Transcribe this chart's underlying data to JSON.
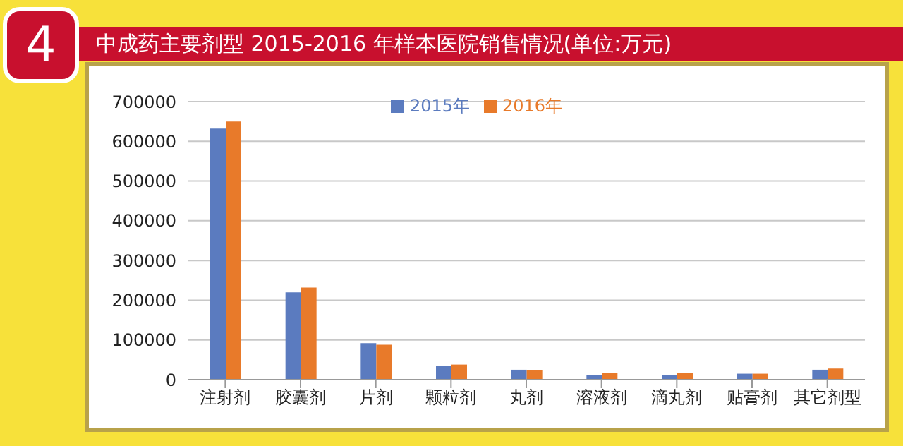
{
  "chart_data": {
    "type": "bar",
    "title": "中成药主要剂型 2015-2016 年样本医院销售情况(单位:万元)",
    "annotations": [
      "4"
    ],
    "categories": [
      "注射剂",
      "胶囊剂",
      "片剂",
      "颗粒剂",
      "丸剂",
      "溶液剂",
      "滴丸剂",
      "贴膏剂",
      "其它剂型"
    ],
    "series": [
      {
        "name": "2015年",
        "color": "#5b7bbf",
        "values": [
          632000,
          220000,
          92000,
          35000,
          25000,
          12000,
          12000,
          15000,
          25000
        ]
      },
      {
        "name": "2016年",
        "color": "#e87a2a",
        "values": [
          650000,
          232000,
          88000,
          38000,
          24000,
          16000,
          16000,
          15000,
          28000
        ]
      }
    ],
    "ylim": [
      0,
      700000
    ],
    "yticks": [
      0,
      100000,
      200000,
      300000,
      400000,
      500000,
      600000,
      700000
    ],
    "grid": "y",
    "legend": "top"
  }
}
